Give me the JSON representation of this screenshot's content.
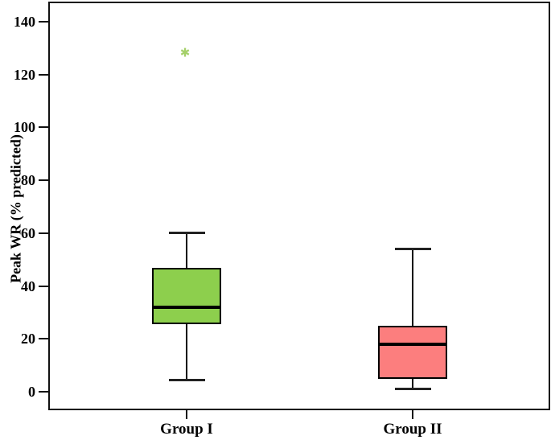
{
  "chart_data": {
    "type": "boxplot",
    "title": "",
    "xlabel": "",
    "ylabel": "Peak WR (% predicted)",
    "ylim": [
      -7,
      147
    ],
    "yticks": [
      0,
      20,
      40,
      60,
      80,
      100,
      120,
      140
    ],
    "grid": false,
    "legend": "none",
    "categories": [
      "Group I",
      "Group II"
    ],
    "series": [
      {
        "name": "Group I",
        "min": 4.5,
        "q1": 25.5,
        "median": 32,
        "q3": 47,
        "max": 60,
        "outliers": [
          128
        ],
        "box_color": "#8DCF4D"
      },
      {
        "name": "Group II",
        "min": 1,
        "q1": 5,
        "median": 18,
        "q3": 25,
        "max": 54,
        "outliers": [],
        "box_color": "#FC7E7E"
      }
    ],
    "outlier_marker": "✱",
    "outlier_marker_color": "#A5D06A"
  },
  "colors": {
    "axis_line": "#111111",
    "box_border": "#000000",
    "median": "#000000",
    "background": "#ffffff",
    "text": "#000000"
  }
}
